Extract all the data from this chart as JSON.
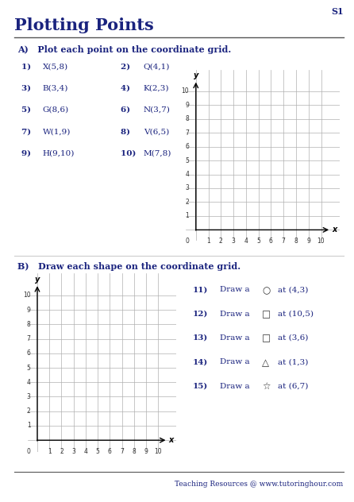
{
  "title": "Plotting Points",
  "s1_label": "S1",
  "section_a_title": "A)   Plot each point on the coordinate grid.",
  "section_b_title": "B)   Draw each shape on the coordinate grid.",
  "points_col1": [
    {
      "num": "1)  ",
      "label": "X(5,8)"
    },
    {
      "num": "3)  ",
      "label": "B(3,4)"
    },
    {
      "num": "5)  ",
      "label": "G(8,6)"
    },
    {
      "num": "7)  ",
      "label": "W(1,9)"
    },
    {
      "num": "9)  ",
      "label": "H(9,10)"
    }
  ],
  "points_col2": [
    {
      "num": "2)  ",
      "label": "Q(4,1)"
    },
    {
      "num": "4)  ",
      "label": "K(2,3)"
    },
    {
      "num": "6)  ",
      "label": "N(3,7)"
    },
    {
      "num": "8)  ",
      "label": "V(6,5)"
    },
    {
      "num": "10)  ",
      "label": "M(7,8)"
    }
  ],
  "shape_items": [
    {
      "num": "11)",
      "sym": "○",
      "text": "at (4,3)"
    },
    {
      "num": "12)",
      "sym": "□",
      "text": "at (10,5)"
    },
    {
      "num": "13)",
      "sym": "□",
      "text": "at (3,6)"
    },
    {
      "num": "14)",
      "sym": "△",
      "text": "at (1,3)"
    },
    {
      "num": "15)",
      "sym": "☆",
      "text": "at (6,7)"
    }
  ],
  "footer": "Teaching Resources @ www.tutoringhour.com",
  "title_color": "#1a237e",
  "text_color": "#1a237e",
  "grid_color": "#b0b0b0",
  "bg_color": "#ffffff"
}
